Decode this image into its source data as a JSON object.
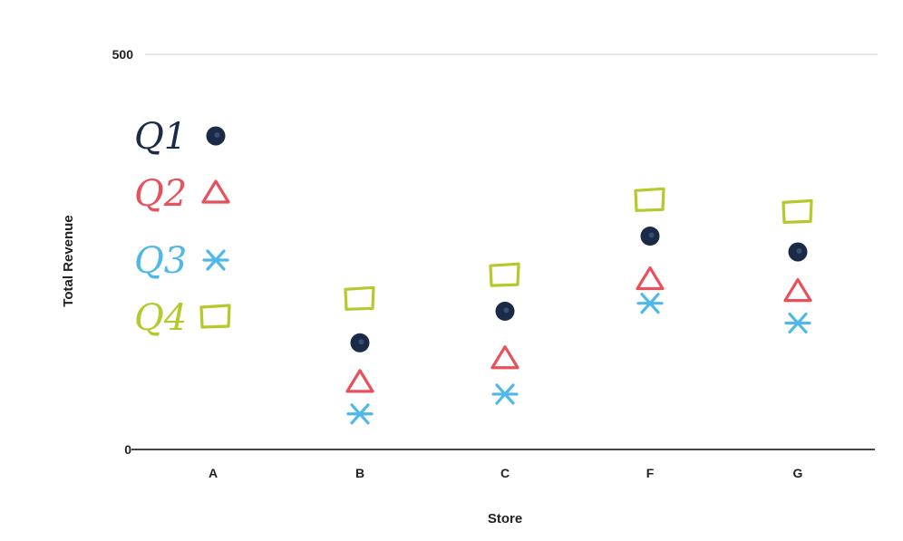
{
  "chart_data": {
    "type": "scatter",
    "title": "",
    "xlabel": "Store",
    "ylabel": "Total Revenue",
    "categories": [
      "A",
      "B",
      "C",
      "F",
      "G"
    ],
    "ylim": [
      0,
      500
    ],
    "y_tick_labels": [
      "0",
      "500"
    ],
    "grid": false,
    "legend_position": "top-left",
    "series": [
      {
        "name": "Q1",
        "marker": "circle",
        "color": "#1b2a47",
        "values": [
          null,
          135,
          175,
          270,
          250
        ]
      },
      {
        "name": "Q2",
        "marker": "triangle",
        "color": "#e8505b",
        "values": [
          null,
          85,
          115,
          215,
          200
        ]
      },
      {
        "name": "Q3",
        "marker": "asterisk",
        "color": "#4fb8e8",
        "values": [
          null,
          45,
          70,
          185,
          160
        ]
      },
      {
        "name": "Q4",
        "marker": "square",
        "color": "#b5c92a",
        "values": [
          null,
          190,
          220,
          315,
          300
        ]
      }
    ]
  }
}
